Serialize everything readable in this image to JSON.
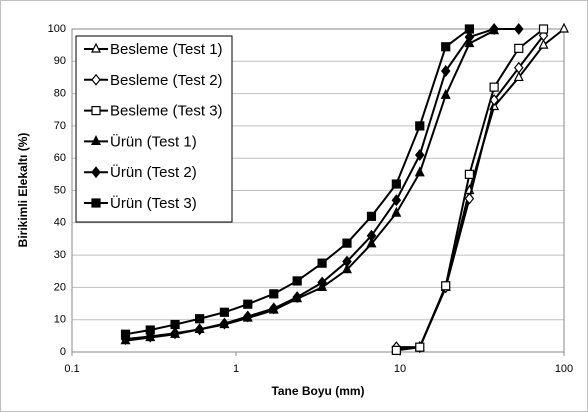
{
  "chart_data": {
    "type": "line",
    "x_label": "Tane Boyu (mm)",
    "y_label": "Birikimli Elekaltı (%)",
    "xscale": "log",
    "xlim": [
      0.1,
      100
    ],
    "xticks": [
      0.1,
      1,
      10,
      100
    ],
    "ylim": [
      0,
      100
    ],
    "yticks": [
      0,
      10,
      20,
      30,
      40,
      50,
      60,
      70,
      80,
      90,
      100
    ],
    "grid": true,
    "legend_position": "upper-left",
    "series": [
      {
        "name": "Besleme (Test 1)",
        "color": "#000000",
        "marker": "triangle-open",
        "x": [
          9.5,
          13.2,
          19,
          26.5,
          37.5,
          53,
          75,
          100
        ],
        "values": [
          1,
          1.5,
          20,
          50,
          76,
          85,
          95,
          100
        ]
      },
      {
        "name": "Besleme (Test 2)",
        "color": "#000000",
        "marker": "diamond-open",
        "x": [
          9.5,
          13.2,
          19,
          26.5,
          37.5,
          53,
          75
        ],
        "values": [
          1.5,
          1.5,
          20,
          47.5,
          78,
          88,
          98
        ]
      },
      {
        "name": "Besleme (Test 3)",
        "color": "#000000",
        "marker": "square-open",
        "x": [
          9.5,
          13.2,
          19,
          26.5,
          37.5,
          53,
          75
        ],
        "values": [
          0.5,
          1.5,
          20.5,
          55,
          82,
          94,
          100
        ]
      },
      {
        "name": "Ürün (Test 1)",
        "color": "#000000",
        "marker": "triangle",
        "x": [
          0.212,
          0.3,
          0.425,
          0.6,
          0.85,
          1.18,
          1.7,
          2.36,
          3.35,
          4.75,
          6.7,
          9.5,
          13.2,
          19,
          26.5,
          37.5
        ],
        "values": [
          3.5,
          4.5,
          5.5,
          7,
          8.5,
          10.5,
          13,
          16.5,
          20,
          25.5,
          33.5,
          43,
          55.5,
          79.5,
          95.5,
          99.5
        ]
      },
      {
        "name": "Ürün (Test 2)",
        "color": "#000000",
        "marker": "diamond",
        "x": [
          0.212,
          0.3,
          0.425,
          0.6,
          0.85,
          1.18,
          1.7,
          2.36,
          3.35,
          4.75,
          6.7,
          9.5,
          13.2,
          19,
          26.5,
          37.5,
          53
        ],
        "values": [
          4,
          4.8,
          5.8,
          7,
          8.8,
          11,
          13.5,
          17,
          21.5,
          28,
          36,
          47,
          61,
          87,
          97.5,
          100,
          100
        ]
      },
      {
        "name": "Ürün (Test 3)",
        "color": "#000000",
        "marker": "square",
        "x": [
          0.212,
          0.3,
          0.425,
          0.6,
          0.85,
          1.18,
          1.7,
          2.36,
          3.35,
          4.75,
          6.7,
          9.5,
          13.2,
          19,
          26.5
        ],
        "values": [
          5.5,
          6.8,
          8.5,
          10.3,
          12.3,
          14.8,
          18,
          22,
          27.5,
          33.7,
          42,
          52,
          70,
          94.5,
          100
        ]
      }
    ]
  }
}
